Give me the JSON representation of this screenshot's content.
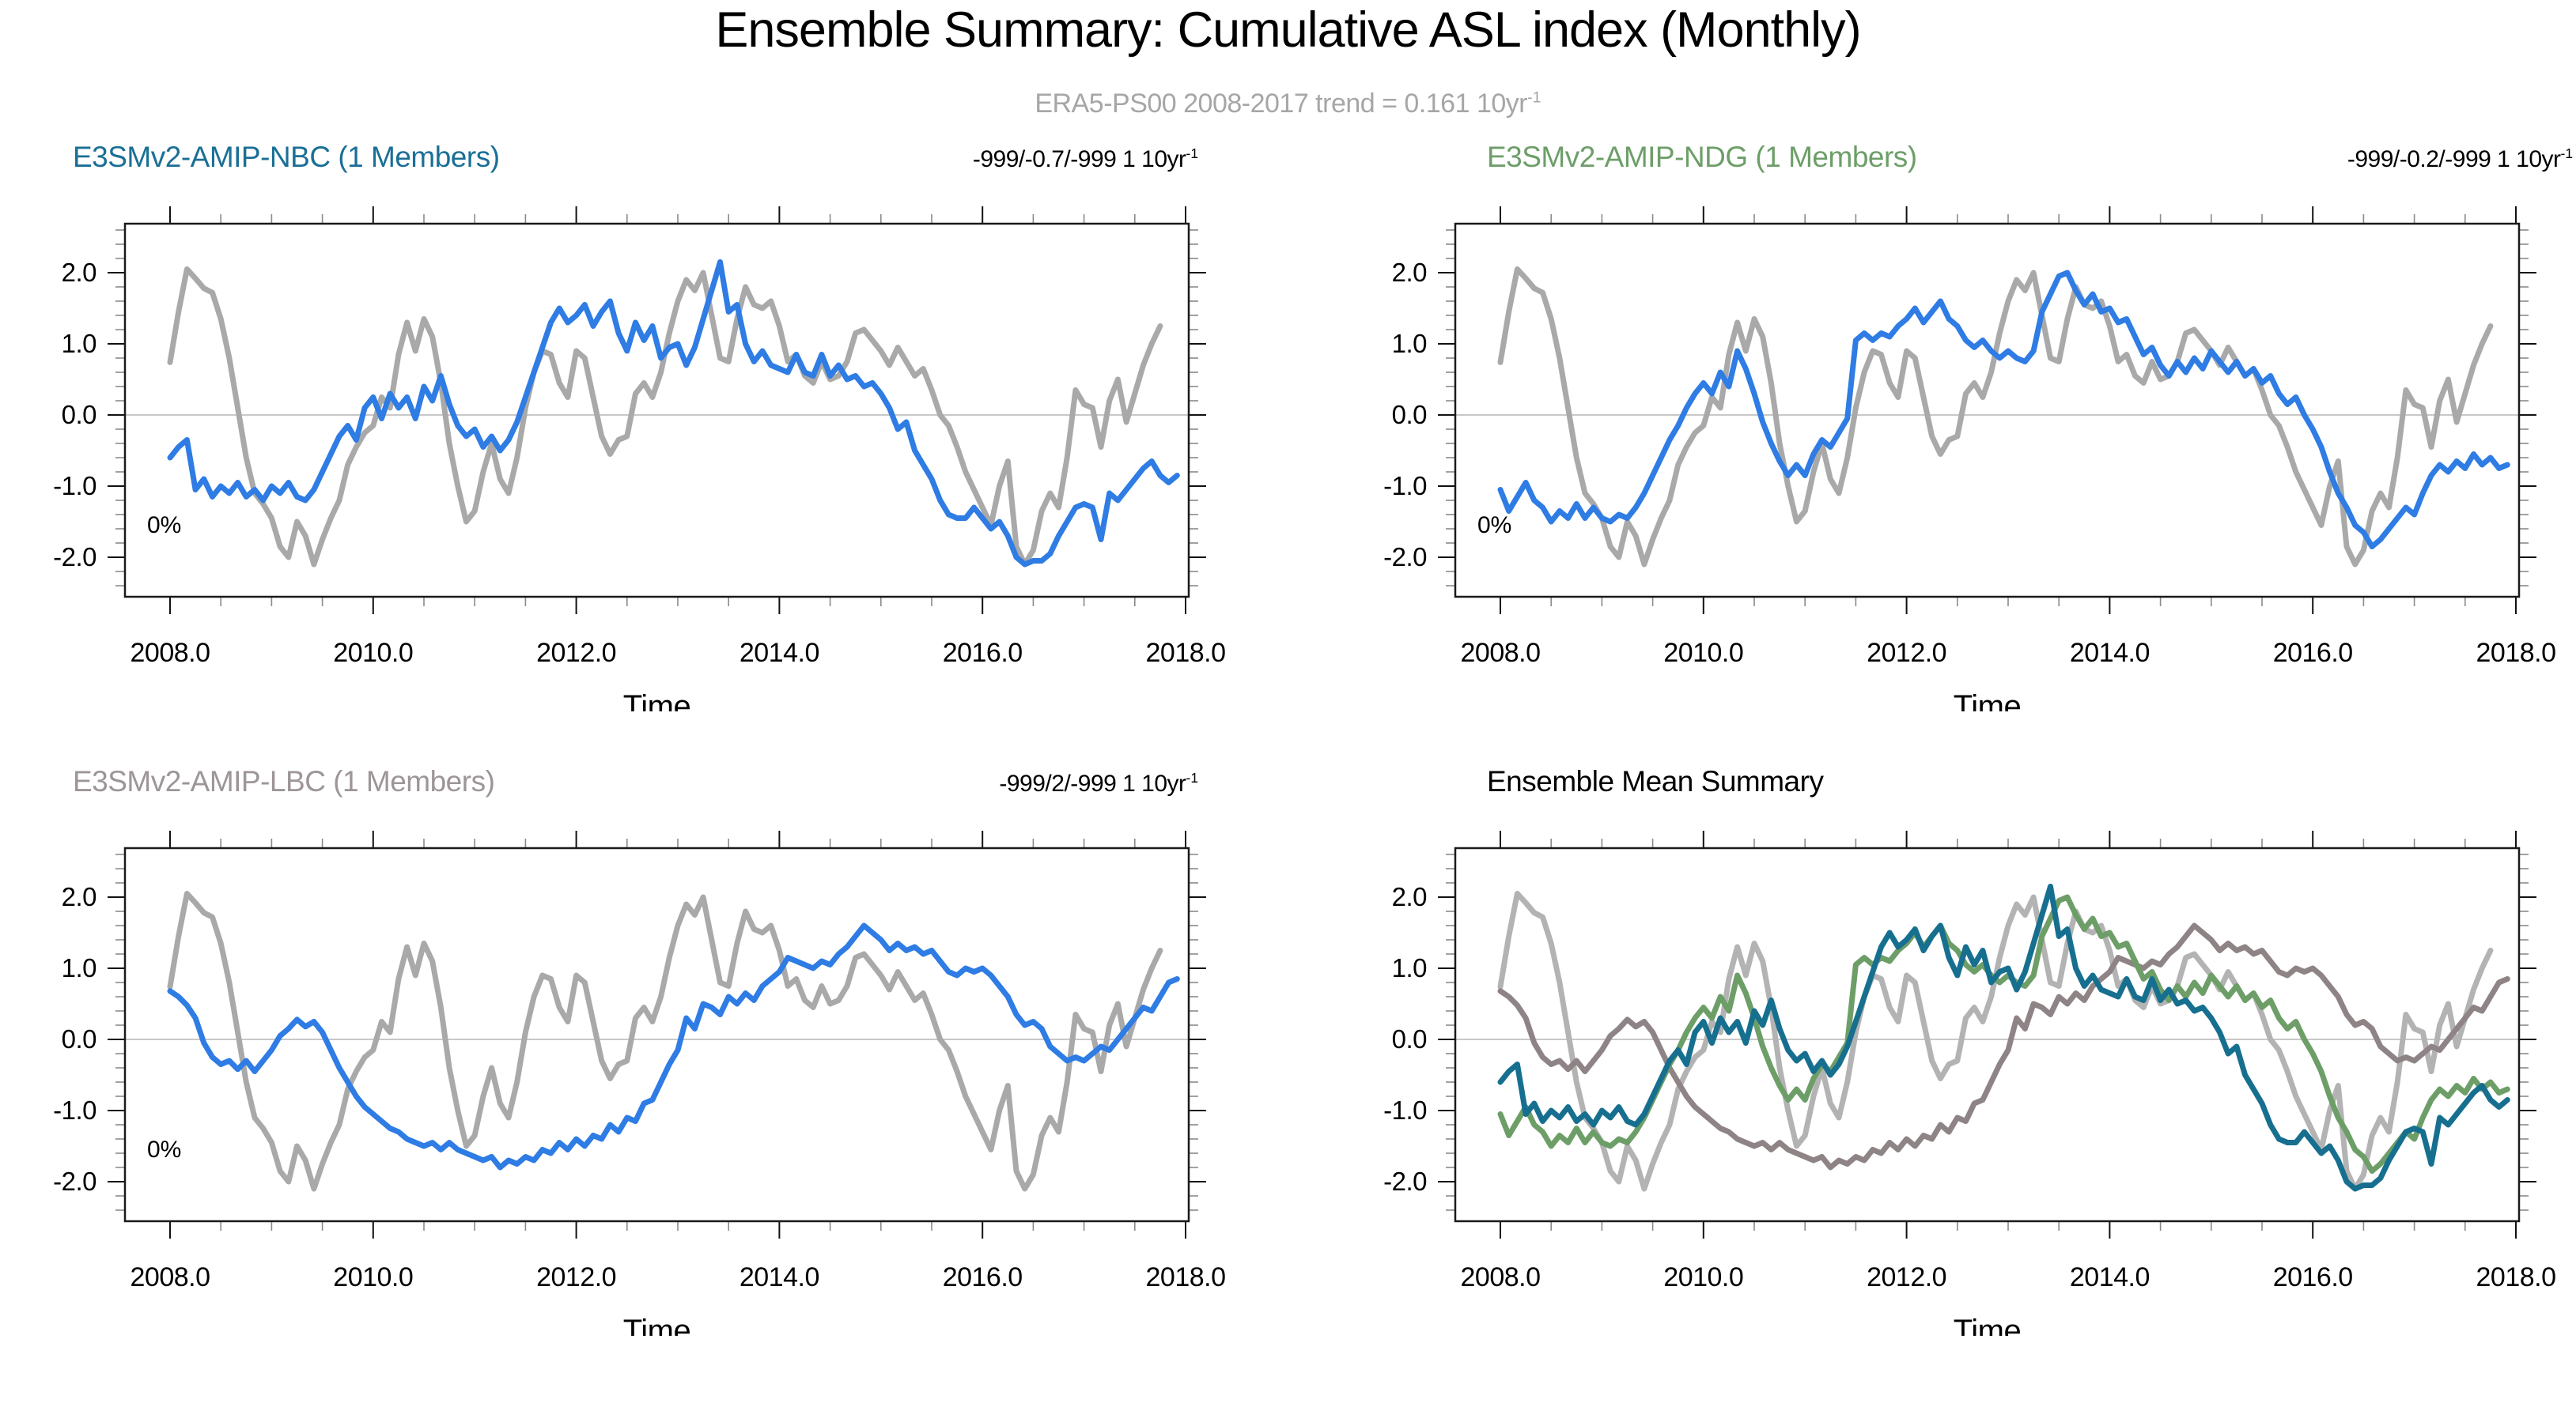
{
  "figure": {
    "title": "Ensemble Summary: Cumulative ASL index (Monthly)",
    "subtitle_prefix": "ERA5-PS00 2008-2017 trend = 0.161 10yr",
    "subtitle_sup": "-1"
  },
  "chart_data": {
    "type": "line",
    "xlabel": "Time",
    "xlim": [
      2007.56,
      2018.04
    ],
    "ylim": [
      -2.56,
      2.69
    ],
    "xticks": [
      2008.0,
      2010.0,
      2012.0,
      2014.0,
      2016.0,
      2018.0
    ],
    "xtick_labels": [
      "2008.0",
      "2010.0",
      "2012.0",
      "2014.0",
      "2016.0",
      "2018.0"
    ],
    "x_minor_step": 0.5,
    "yticks": [
      2.0,
      1.0,
      0.0,
      -1.0,
      -2.0
    ],
    "ytick_labels": [
      "2.0",
      "1.0",
      "0.0",
      "-1.0",
      "-2.0"
    ],
    "y_minor_step": 0.2,
    "grid": "zero-line-only",
    "legend_position": "none",
    "x_start": 2008.0,
    "x_step": 0.0833333,
    "series": {
      "era5": {
        "name": "ERA5-PS00",
        "color": "#a9a9a9",
        "width": 7,
        "values": [
          0.74,
          1.45,
          2.05,
          1.92,
          1.78,
          1.72,
          1.35,
          0.8,
          0.1,
          -0.6,
          -1.1,
          -1.25,
          -1.45,
          -1.85,
          -2.0,
          -1.5,
          -1.7,
          -2.1,
          -1.75,
          -1.45,
          -1.2,
          -0.7,
          -0.45,
          -0.25,
          -0.15,
          0.25,
          0.1,
          0.85,
          1.3,
          0.9,
          1.35,
          1.1,
          0.45,
          -0.4,
          -1.0,
          -1.5,
          -1.35,
          -0.8,
          -0.4,
          -0.9,
          -1.1,
          -0.6,
          0.1,
          0.6,
          0.9,
          0.85,
          0.45,
          0.25,
          0.9,
          0.8,
          0.25,
          -0.3,
          -0.55,
          -0.35,
          -0.3,
          0.3,
          0.45,
          0.25,
          0.6,
          1.15,
          1.6,
          1.9,
          1.75,
          2.0,
          1.4,
          0.8,
          0.75,
          1.35,
          1.8,
          1.55,
          1.5,
          1.6,
          1.25,
          0.75,
          0.85,
          0.55,
          0.45,
          0.75,
          0.5,
          0.55,
          0.75,
          1.15,
          1.2,
          1.05,
          0.9,
          0.7,
          0.95,
          0.75,
          0.55,
          0.65,
          0.35,
          0.0,
          -0.15,
          -0.45,
          -0.8,
          -1.05,
          -1.3,
          -1.55,
          -1.0,
          -0.65,
          -1.85,
          -2.1,
          -1.9,
          -1.35,
          -1.1,
          -1.3,
          -0.6,
          0.35,
          0.15,
          0.1,
          -0.45,
          0.2,
          0.5,
          -0.1,
          0.3,
          0.7,
          1.0,
          1.25
        ]
      },
      "nbc": {
        "name": "E3SMv2-AMIP-NBC",
        "color": "#2e7ce4",
        "width": 7,
        "values": [
          -0.6,
          -0.45,
          -0.35,
          -1.05,
          -0.9,
          -1.15,
          -1.0,
          -1.1,
          -0.95,
          -1.15,
          -1.05,
          -1.2,
          -1.0,
          -1.1,
          -0.95,
          -1.15,
          -1.2,
          -1.05,
          -0.8,
          -0.55,
          -0.3,
          -0.15,
          -0.35,
          0.1,
          0.25,
          -0.05,
          0.3,
          0.1,
          0.25,
          -0.05,
          0.4,
          0.2,
          0.55,
          0.15,
          -0.15,
          -0.3,
          -0.2,
          -0.45,
          -0.3,
          -0.5,
          -0.35,
          -0.1,
          0.25,
          0.6,
          0.95,
          1.3,
          1.5,
          1.3,
          1.4,
          1.55,
          1.25,
          1.45,
          1.6,
          1.15,
          0.9,
          1.3,
          1.05,
          1.25,
          0.8,
          0.95,
          1.0,
          0.7,
          0.95,
          1.35,
          1.75,
          2.15,
          1.45,
          1.55,
          1.0,
          0.75,
          0.9,
          0.7,
          0.65,
          0.6,
          0.85,
          0.6,
          0.55,
          0.85,
          0.55,
          0.7,
          0.5,
          0.55,
          0.4,
          0.45,
          0.3,
          0.1,
          -0.2,
          -0.1,
          -0.5,
          -0.7,
          -0.9,
          -1.2,
          -1.4,
          -1.45,
          -1.45,
          -1.3,
          -1.45,
          -1.6,
          -1.5,
          -1.7,
          -2.0,
          -2.1,
          -2.05,
          -2.05,
          -1.95,
          -1.7,
          -1.5,
          -1.3,
          -1.25,
          -1.3,
          -1.75,
          -1.1,
          -1.2,
          -1.05,
          -0.9,
          -0.75,
          -0.65,
          -0.85,
          -0.95,
          -0.85
        ]
      },
      "ndg": {
        "name": "E3SMv2-AMIP-NDG",
        "color": "#2e7ce4",
        "width": 7,
        "values": [
          -1.05,
          -1.35,
          -1.15,
          -0.95,
          -1.2,
          -1.3,
          -1.5,
          -1.35,
          -1.45,
          -1.25,
          -1.45,
          -1.3,
          -1.45,
          -1.5,
          -1.4,
          -1.45,
          -1.3,
          -1.1,
          -0.85,
          -0.6,
          -0.35,
          -0.15,
          0.1,
          0.3,
          0.45,
          0.3,
          0.6,
          0.4,
          0.9,
          0.65,
          0.3,
          -0.1,
          -0.4,
          -0.65,
          -0.85,
          -0.7,
          -0.85,
          -0.55,
          -0.35,
          -0.45,
          -0.25,
          -0.05,
          1.05,
          1.15,
          1.05,
          1.15,
          1.1,
          1.25,
          1.35,
          1.5,
          1.3,
          1.45,
          1.6,
          1.35,
          1.25,
          1.05,
          0.95,
          1.05,
          0.9,
          0.8,
          0.9,
          0.8,
          0.75,
          0.9,
          1.45,
          1.7,
          1.95,
          2.0,
          1.75,
          1.55,
          1.7,
          1.45,
          1.5,
          1.3,
          1.35,
          1.1,
          0.85,
          0.95,
          0.7,
          0.55,
          0.75,
          0.6,
          0.8,
          0.65,
          0.9,
          0.75,
          0.6,
          0.75,
          0.55,
          0.65,
          0.45,
          0.55,
          0.3,
          0.15,
          0.25,
          0.0,
          -0.2,
          -0.45,
          -0.8,
          -1.1,
          -1.3,
          -1.55,
          -1.65,
          -1.85,
          -1.75,
          -1.6,
          -1.45,
          -1.3,
          -1.4,
          -1.1,
          -0.85,
          -0.7,
          -0.8,
          -0.65,
          -0.75,
          -0.55,
          -0.7,
          -0.6,
          -0.75,
          -0.7
        ]
      },
      "lbc": {
        "name": "E3SMv2-AMIP-LBC",
        "color": "#2e7ce4",
        "width": 7,
        "values": [
          0.68,
          0.6,
          0.48,
          0.3,
          -0.05,
          -0.25,
          -0.35,
          -0.3,
          -0.42,
          -0.3,
          -0.45,
          -0.3,
          -0.15,
          0.05,
          0.15,
          0.28,
          0.18,
          0.25,
          0.1,
          -0.15,
          -0.4,
          -0.6,
          -0.8,
          -0.95,
          -1.05,
          -1.15,
          -1.25,
          -1.3,
          -1.4,
          -1.45,
          -1.5,
          -1.45,
          -1.55,
          -1.45,
          -1.55,
          -1.6,
          -1.65,
          -1.7,
          -1.65,
          -1.8,
          -1.7,
          -1.75,
          -1.65,
          -1.7,
          -1.55,
          -1.6,
          -1.45,
          -1.55,
          -1.4,
          -1.5,
          -1.35,
          -1.4,
          -1.2,
          -1.3,
          -1.1,
          -1.15,
          -0.9,
          -0.85,
          -0.6,
          -0.35,
          -0.15,
          0.3,
          0.15,
          0.5,
          0.45,
          0.35,
          0.6,
          0.5,
          0.65,
          0.55,
          0.75,
          0.85,
          0.95,
          1.15,
          1.1,
          1.05,
          1.0,
          1.1,
          1.05,
          1.2,
          1.3,
          1.45,
          1.6,
          1.5,
          1.4,
          1.25,
          1.35,
          1.25,
          1.3,
          1.2,
          1.25,
          1.1,
          0.95,
          0.9,
          1.0,
          0.95,
          1.0,
          0.9,
          0.75,
          0.6,
          0.35,
          0.2,
          0.25,
          0.15,
          -0.1,
          -0.2,
          -0.3,
          -0.25,
          -0.3,
          -0.2,
          -0.1,
          -0.15,
          0.0,
          0.15,
          0.3,
          0.45,
          0.4,
          0.6,
          0.8,
          0.85
        ]
      }
    },
    "panels": [
      {
        "id": "top-left",
        "title": "E3SMv2-AMIP-NBC (1 Members)",
        "title_color": "#1a6f96",
        "trend_prefix": "-999/-0.7/-999 1 10yr",
        "trend_sup": "-1",
        "corner_label": "0%",
        "series": [
          "era5",
          "nbc"
        ],
        "series_colors": [
          "#a9a9a9",
          "#2e7ce4"
        ]
      },
      {
        "id": "top-right",
        "title": "E3SMv2-AMIP-NDG (1 Members)",
        "title_color": "#6d9e68",
        "trend_prefix": "-999/-0.2/-999 1 10yr",
        "trend_sup": "-1",
        "corner_label": "0%",
        "series": [
          "era5",
          "ndg"
        ],
        "series_colors": [
          "#a9a9a9",
          "#2e7ce4"
        ]
      },
      {
        "id": "bottom-left",
        "title": "E3SMv2-AMIP-LBC (1 Members)",
        "title_color": "#9d9597",
        "trend_prefix": "-999/2/-999 1 10yr",
        "trend_sup": "-1",
        "corner_label": "0%",
        "series": [
          "era5",
          "lbc"
        ],
        "series_colors": [
          "#a9a9a9",
          "#2e7ce4"
        ]
      },
      {
        "id": "bottom-right",
        "title": "Ensemble Mean Summary",
        "title_color": "#000000",
        "trend_prefix": "",
        "trend_sup": "",
        "corner_label": "",
        "series": [
          "era5",
          "lbc",
          "ndg",
          "nbc"
        ],
        "series_colors": [
          "#b3b3b3",
          "#8e8486",
          "#6d9e68",
          "#176f8f"
        ]
      }
    ]
  }
}
